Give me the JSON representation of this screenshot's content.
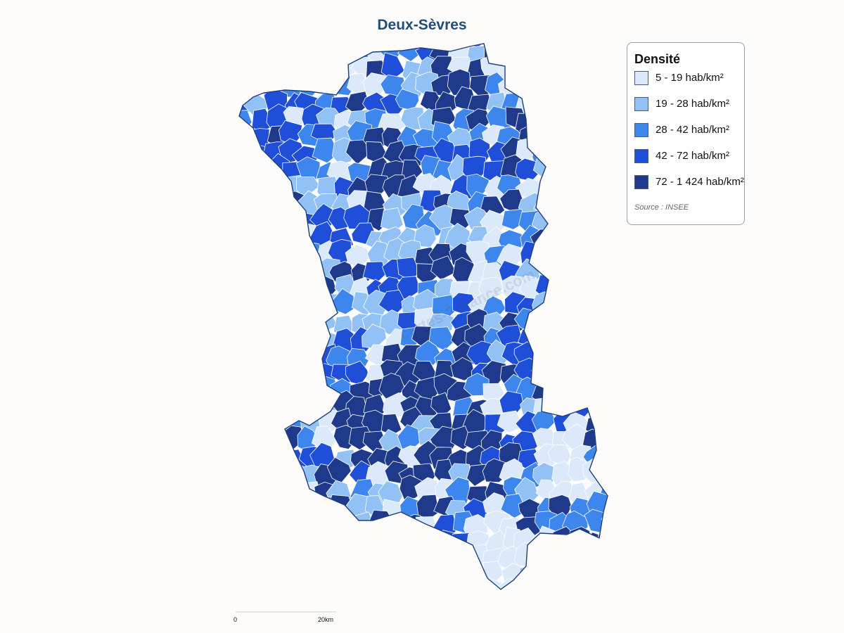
{
  "title": "Deux-Sèvres",
  "legend": {
    "title": "Densité",
    "classes": [
      {
        "label": "5 - 19 hab/km²",
        "color": "#dbe9fb"
      },
      {
        "label": "19 - 28 hab/km²",
        "color": "#92c1f6"
      },
      {
        "label": "28 - 42 hab/km²",
        "color": "#3d86ee"
      },
      {
        "label": "42 - 72 hab/km²",
        "color": "#1f4fd8"
      },
      {
        "label": "72 - 1 424 hab/km²",
        "color": "#1f3a8a"
      }
    ],
    "source": "Source : INSEE"
  },
  "scale": {
    "start": "0",
    "end": "20km"
  },
  "watermark": "cartes-2-france.com",
  "colors": {
    "title": "#1f4e7a",
    "border": "#ffffff",
    "outline": "#1f3f7a"
  }
}
